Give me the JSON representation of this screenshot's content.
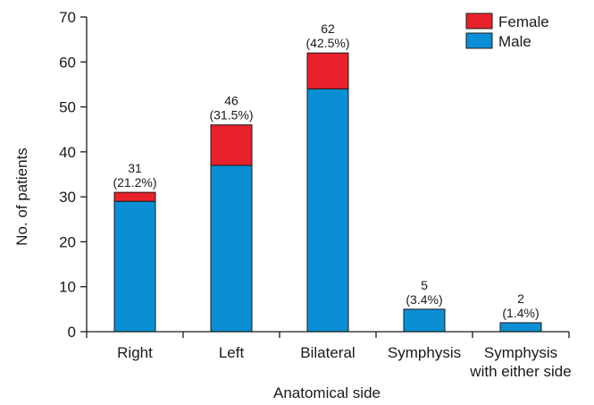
{
  "chart_data": {
    "type": "bar",
    "stacked": true,
    "categories": [
      "Right",
      "Left",
      "Bilateral",
      "Symphysis",
      "Symphysis with either side"
    ],
    "category_lines": [
      [
        "Right"
      ],
      [
        "Left"
      ],
      [
        "Bilateral"
      ],
      [
        "Symphysis"
      ],
      [
        "Symphysis",
        "with either side"
      ]
    ],
    "series": [
      {
        "name": "Male",
        "color": "#0a8fd4",
        "values": [
          29,
          37,
          54,
          5,
          2
        ]
      },
      {
        "name": "Female",
        "color": "#e8212b",
        "values": [
          2,
          9,
          8,
          0,
          0
        ]
      }
    ],
    "totals": [
      31,
      46,
      62,
      5,
      2
    ],
    "percent_labels": [
      "(21.2%)",
      "(31.5%)",
      "(42.5%)",
      "(3.4%)",
      "(1.4%)"
    ],
    "xlabel": "Anatomical side",
    "ylabel": "No. of patients",
    "ylim": [
      0,
      70
    ],
    "yticks": [
      0,
      10,
      20,
      30,
      40,
      50,
      60,
      70
    ],
    "grid": false,
    "legend": {
      "position": "top-right",
      "order": [
        "Female",
        "Male"
      ]
    }
  }
}
